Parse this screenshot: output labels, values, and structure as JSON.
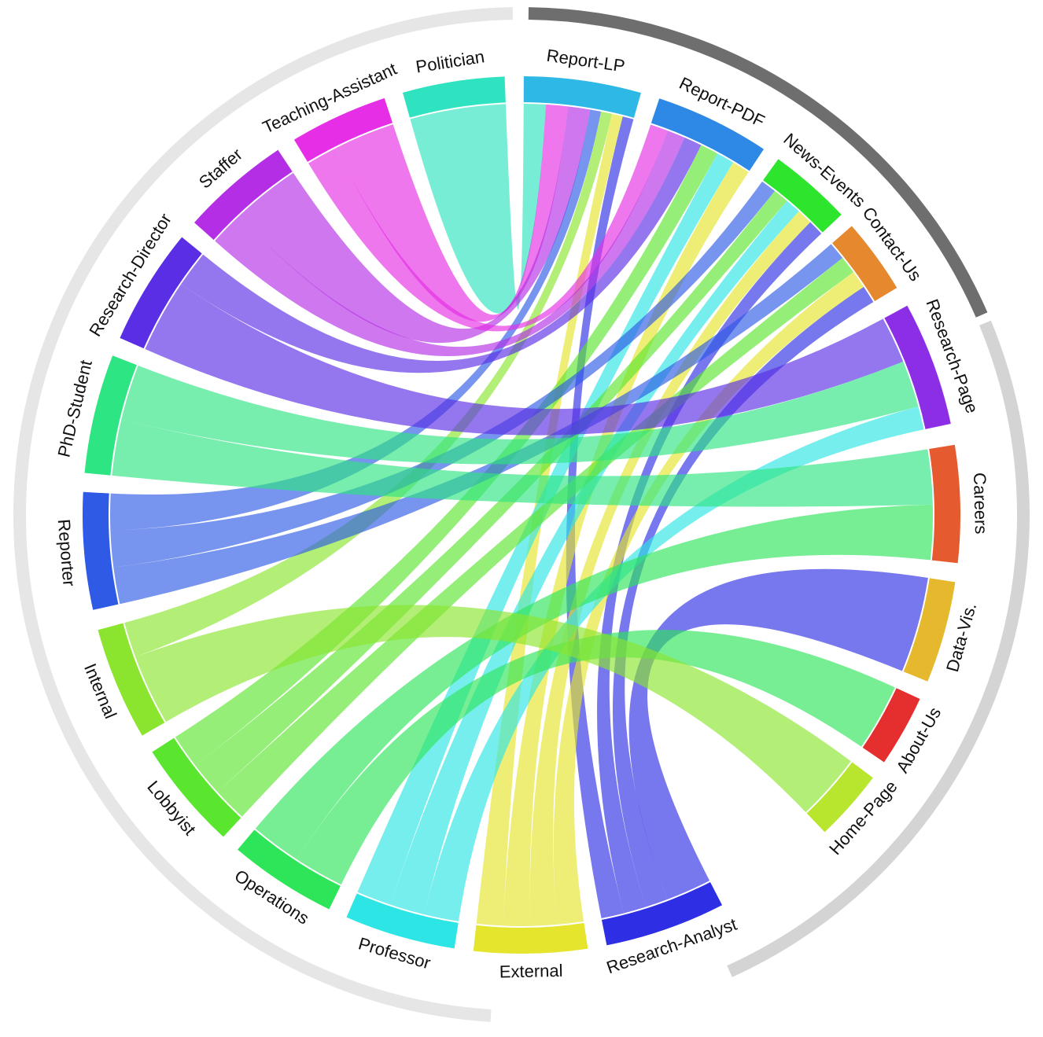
{
  "nodes": [
    {
      "id": "Politician",
      "label": "Politician",
      "color": "#2fe3c0",
      "side": "source"
    },
    {
      "id": "Teaching-Assistant",
      "label": "Teaching-Assistant",
      "color": "#e52ee5",
      "side": "source"
    },
    {
      "id": "Staffer",
      "label": "Staffer",
      "color": "#b42ee5",
      "side": "source"
    },
    {
      "id": "Research-Director",
      "label": "Research-Director",
      "color": "#5a2ee5",
      "side": "source"
    },
    {
      "id": "PhD-Student",
      "label": "PhD-Student",
      "color": "#2ee583",
      "side": "source"
    },
    {
      "id": "Reporter",
      "label": "Reporter",
      "color": "#2e5ae5",
      "side": "source"
    },
    {
      "id": "Internal",
      "label": "Internal",
      "color": "#8be52e",
      "side": "source"
    },
    {
      "id": "Lobbyist",
      "label": "Lobbyist",
      "color": "#5ae52e",
      "side": "source"
    },
    {
      "id": "Operations",
      "label": "Operations",
      "color": "#2ee55a",
      "side": "source"
    },
    {
      "id": "Professor",
      "label": "Professor",
      "color": "#2ee5e5",
      "side": "source"
    },
    {
      "id": "External",
      "label": "External",
      "color": "#e5e52e",
      "side": "source"
    },
    {
      "id": "Research-Analyst",
      "label": "Research-Analyst",
      "color": "#2e2ee5",
      "side": "source"
    },
    {
      "id": "Home-Page",
      "label": "Home-Page",
      "color": "#b8e52e",
      "side": "target"
    },
    {
      "id": "About-Us",
      "label": "About-Us",
      "color": "#e52e2e",
      "side": "target"
    },
    {
      "id": "Data-Vis.",
      "label": "Data-Vis.",
      "color": "#e5b82e",
      "side": "target"
    },
    {
      "id": "Careers",
      "label": "Careers",
      "color": "#e55a2e",
      "side": "target"
    },
    {
      "id": "Research-Page",
      "label": "Research-Page",
      "color": "#8b2ee5",
      "side": "target"
    },
    {
      "id": "Contact-Us",
      "label": "Contact-Us",
      "color": "#e5882e",
      "side": "target"
    },
    {
      "id": "News-Events",
      "label": "News-Events",
      "color": "#2ee52e",
      "side": "target"
    },
    {
      "id": "Report-PDF",
      "label": "Report-PDF",
      "color": "#2e88e5",
      "side": "target"
    },
    {
      "id": "Report-LP",
      "label": "Report-LP",
      "color": "#2eb8e5",
      "side": "target"
    }
  ],
  "links": [
    {
      "source": "Politician",
      "target": "Report-LP",
      "value": 1
    },
    {
      "source": "Teaching-Assistant",
      "target": "Report-LP",
      "value": 1
    },
    {
      "source": "Teaching-Assistant",
      "target": "Report-PDF",
      "value": 0.5
    },
    {
      "source": "Staffer",
      "target": "Report-LP",
      "value": 1
    },
    {
      "source": "Staffer",
      "target": "Report-PDF",
      "value": 0.5
    },
    {
      "source": "Research-Director",
      "target": "Report-PDF",
      "value": 0.5
    },
    {
      "source": "Research-Director",
      "target": "Research-Page",
      "value": 1
    },
    {
      "source": "PhD-Student",
      "target": "Research-Page",
      "value": 1
    },
    {
      "source": "PhD-Student",
      "target": "Careers",
      "value": 1
    },
    {
      "source": "Reporter",
      "target": "Report-LP",
      "value": 0.5
    },
    {
      "source": "Reporter",
      "target": "News-Events",
      "value": 0.5
    },
    {
      "source": "Reporter",
      "target": "Contact-Us",
      "value": 0.5
    },
    {
      "source": "Internal",
      "target": "Home-Page",
      "value": 1
    },
    {
      "source": "Internal",
      "target": "Report-LP",
      "value": 0.5
    },
    {
      "source": "Lobbyist",
      "target": "Report-PDF",
      "value": 0.5
    },
    {
      "source": "Lobbyist",
      "target": "News-Events",
      "value": 0.5
    },
    {
      "source": "Lobbyist",
      "target": "Contact-Us",
      "value": 0.5
    },
    {
      "source": "Operations",
      "target": "About-Us",
      "value": 1
    },
    {
      "source": "Operations",
      "target": "Careers",
      "value": 1
    },
    {
      "source": "Professor",
      "target": "Report-PDF",
      "value": 0.5
    },
    {
      "source": "Professor",
      "target": "News-Events",
      "value": 0.5
    },
    {
      "source": "Professor",
      "target": "Research-Page",
      "value": 0.5
    },
    {
      "source": "External",
      "target": "Report-LP",
      "value": 0.5
    },
    {
      "source": "External",
      "target": "Report-PDF",
      "value": 0.5
    },
    {
      "source": "External",
      "target": "News-Events",
      "value": 0.5
    },
    {
      "source": "External",
      "target": "Contact-Us",
      "value": 0.5
    },
    {
      "source": "Research-Analyst",
      "target": "Data-Vis.",
      "value": 1
    },
    {
      "source": "Research-Analyst",
      "target": "Report-LP",
      "value": 0.5
    },
    {
      "source": "Research-Analyst",
      "target": "News-Events",
      "value": 0.5
    },
    {
      "source": "Research-Analyst",
      "target": "Contact-Us",
      "value": 0.5
    }
  ],
  "colors": {
    "outer_ring_light": "#e6e6e6",
    "outer_ring_dark": "#6e6e6e",
    "outer_ring_mid": "#d4d4d4"
  }
}
